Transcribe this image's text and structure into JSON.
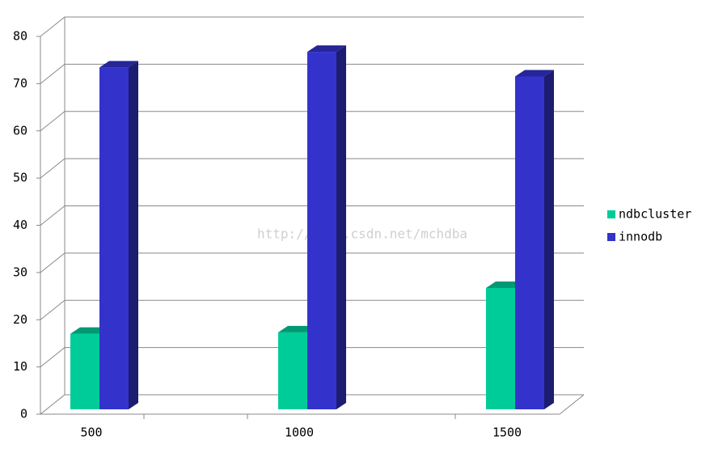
{
  "chart_data": {
    "type": "bar3d",
    "categories": [
      "500",
      "1000",
      "1500"
    ],
    "series": [
      {
        "name": "ndbcluster",
        "color": "#00cc99",
        "values": [
          16,
          16.3,
          25.7
        ]
      },
      {
        "name": "innodb",
        "color": "#3333cc",
        "values": [
          72.4,
          75.7,
          70.5
        ]
      }
    ],
    "ylim": [
      0,
      80
    ],
    "yticks": [
      0,
      10,
      20,
      30,
      40,
      50,
      60,
      70,
      80
    ],
    "grid": true,
    "legend": "right",
    "watermark": "http://blog.csdn.net/mchdba"
  }
}
